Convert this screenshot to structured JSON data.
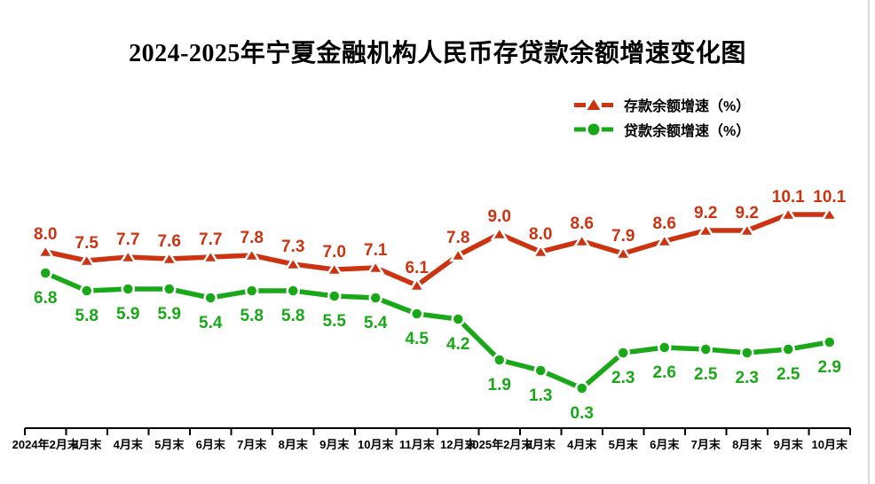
{
  "title": "2024-2025年宁夏金融机构人民币存贷款余额增速变化图",
  "colors": {
    "deposit_red": "#cc3311",
    "loan_green": "#18a818",
    "axis": "#000000",
    "background": "#ffffff",
    "right_edge_line": "#d9d9d9"
  },
  "legend": {
    "items": [
      {
        "label": "存款余额增速（%）",
        "marker": "triangle",
        "color": "#cc3311"
      },
      {
        "label": "贷款余额增速（%）",
        "marker": "circle",
        "color": "#18a818"
      }
    ]
  },
  "chart_data": {
    "type": "line",
    "title": "2024-2025年宁夏金融机构人民币存贷款余额增速变化图",
    "xlabel": "",
    "ylabel": "",
    "ylim": [
      0,
      11
    ],
    "grid": false,
    "legend_position": "top-right",
    "data_labels": true,
    "categories": [
      "2024年2月末",
      "3月末",
      "4月末",
      "5月末",
      "6月末",
      "7月末",
      "8月末",
      "9月末",
      "10月末",
      "11月末",
      "12月末",
      "2025年2月末",
      "3月末",
      "4月末",
      "5月末",
      "6月末",
      "7月末",
      "8月末",
      "9月末",
      "10月末"
    ],
    "series": [
      {
        "id": "deposit",
        "name": "存款余额增速（%）",
        "color": "#cc3311",
        "marker": "triangle",
        "label_position": "above",
        "values": [
          8.0,
          7.5,
          7.7,
          7.6,
          7.7,
          7.8,
          7.3,
          7.0,
          7.1,
          6.1,
          7.8,
          9.0,
          8.0,
          8.6,
          7.9,
          8.6,
          9.2,
          9.2,
          10.1,
          10.1
        ]
      },
      {
        "id": "loan",
        "name": "贷款余额增速（%）",
        "color": "#18a818",
        "marker": "circle",
        "label_position": "below",
        "values": [
          6.8,
          5.8,
          5.9,
          5.9,
          5.4,
          5.8,
          5.8,
          5.5,
          5.4,
          4.5,
          4.2,
          1.9,
          1.3,
          0.3,
          2.3,
          2.6,
          2.5,
          2.3,
          2.5,
          2.9
        ]
      }
    ]
  }
}
